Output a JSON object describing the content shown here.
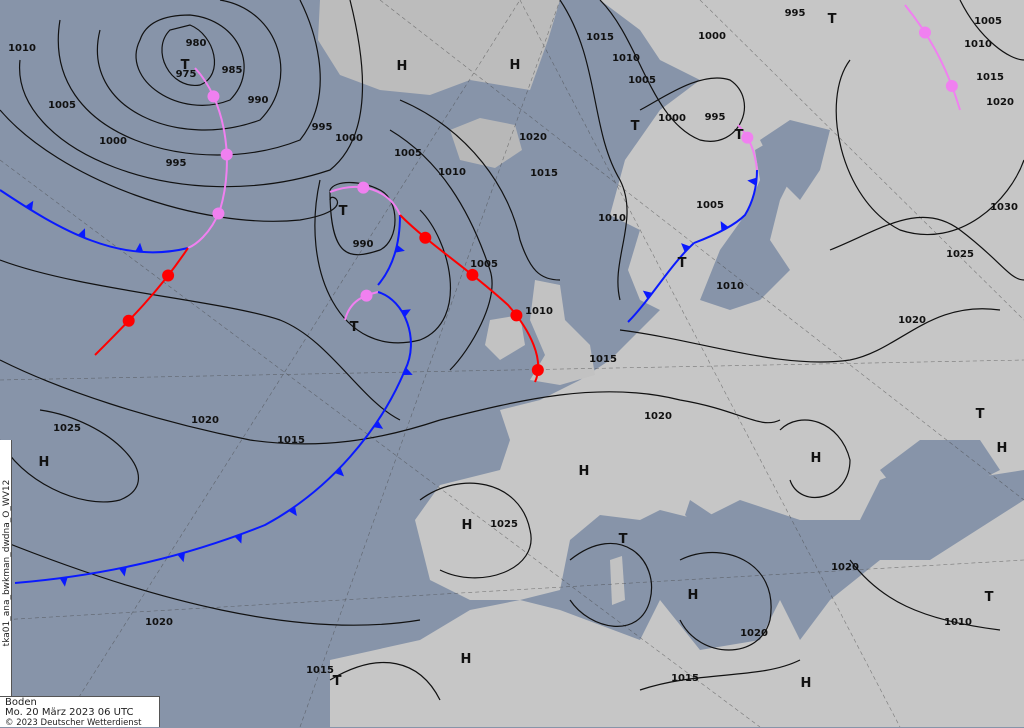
{
  "map": {
    "product_id": "tka01_ana_bwkman_dwdna_O_WV12",
    "level": "Boden",
    "valid_time": "Mo. 20 März 2023 06 UTC",
    "copyright": "© 2023 Deutscher Wetterdienst",
    "colors": {
      "sea": "#8794a9",
      "land": "#c4c4c4",
      "cold_front": "#0a1aff",
      "warm_front": "#ff0000",
      "occlusion": "#f080f0",
      "isobar": "#111111"
    },
    "isobar_labels": [
      "1010",
      "980",
      "975",
      "985",
      "990",
      "995",
      "1005",
      "1000",
      "995",
      "1000",
      "1005",
      "1010",
      "990",
      "1005",
      "1015",
      "1010",
      "1005",
      "1000",
      "995",
      "1000",
      "995",
      "1020",
      "1015",
      "1010",
      "1005",
      "1010",
      "1010",
      "1015",
      "1020",
      "1025",
      "1025",
      "1020",
      "1015",
      "1020",
      "1015",
      "1015",
      "1020",
      "1020",
      "1010",
      "1020",
      "1025",
      "1030",
      "1005",
      "1010",
      "1015",
      "1020"
    ],
    "pressure_centers": [
      "H",
      "H",
      "H",
      "T",
      "T",
      "T",
      "T",
      "T",
      "T",
      "T",
      "H",
      "H",
      "H",
      "T",
      "H",
      "H",
      "T",
      "H",
      "T",
      "H",
      "T"
    ]
  }
}
